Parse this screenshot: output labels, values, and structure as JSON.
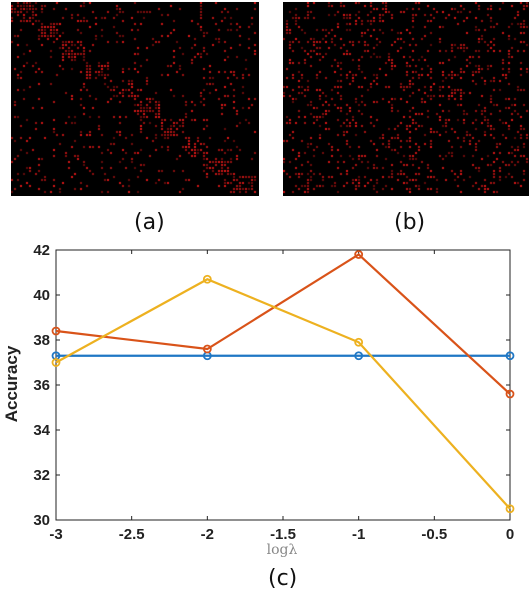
{
  "panels": {
    "a": {
      "label": "(a)"
    },
    "b": {
      "label": "(b)"
    },
    "c": {
      "label": "(c)"
    }
  },
  "colors": {
    "heatmap_bg": "#000000",
    "heatmap_cell": "#e01818"
  },
  "chart_data": {
    "type": "line",
    "xlabel": "logλ",
    "ylabel": "Accuracy",
    "x": [
      -3,
      -2,
      -1,
      0
    ],
    "xlim": [
      -3,
      0
    ],
    "ylim": [
      30,
      42
    ],
    "xticks": [
      "-3",
      "-2.5",
      "-2",
      "-1.5",
      "-1",
      "-0.5",
      "0"
    ],
    "xtick_values": [
      -3,
      -2.5,
      -2,
      -1.5,
      -1,
      -0.5,
      0
    ],
    "yticks": [
      "30",
      "32",
      "34",
      "36",
      "38",
      "40",
      "42"
    ],
    "ytick_values": [
      30,
      32,
      34,
      36,
      38,
      40,
      42
    ],
    "grid": false,
    "series": [
      {
        "values": [
          37.3,
          37.3,
          37.3,
          37.3
        ],
        "color": "#1f77c4"
      },
      {
        "values": [
          38.4,
          37.6,
          41.8,
          35.6
        ],
        "color": "#d95319"
      },
      {
        "values": [
          37.0,
          40.7,
          37.9,
          30.5
        ],
        "color": "#edb120"
      }
    ]
  }
}
